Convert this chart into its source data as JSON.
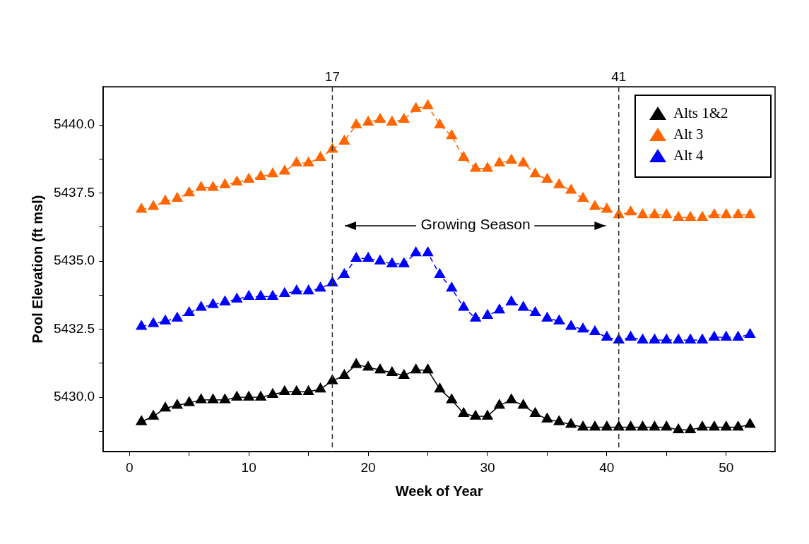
{
  "chart_data": {
    "type": "line",
    "xlabel": "Week of Year",
    "ylabel": "Pool Elevation (ft msl)",
    "x": [
      1,
      2,
      3,
      4,
      5,
      6,
      7,
      8,
      9,
      10,
      11,
      12,
      13,
      14,
      15,
      16,
      17,
      18,
      19,
      20,
      21,
      22,
      23,
      24,
      25,
      26,
      27,
      28,
      29,
      30,
      31,
      32,
      33,
      34,
      35,
      36,
      37,
      38,
      39,
      40,
      41,
      42,
      43,
      44,
      45,
      46,
      47,
      48,
      49,
      50,
      51,
      52
    ],
    "series": [
      {
        "name": "Alts 1&2",
        "color": "#000000",
        "line_style": "solid",
        "values": [
          5429.1,
          5429.3,
          5429.6,
          5429.7,
          5429.8,
          5429.9,
          5429.9,
          5429.9,
          5430.0,
          5430.0,
          5430.0,
          5430.1,
          5430.2,
          5430.2,
          5430.2,
          5430.3,
          5430.6,
          5430.8,
          5431.2,
          5431.1,
          5431.0,
          5430.9,
          5430.8,
          5431.0,
          5431.0,
          5430.3,
          5429.9,
          5429.4,
          5429.3,
          5429.3,
          5429.7,
          5429.9,
          5429.7,
          5429.4,
          5429.2,
          5429.1,
          5429.0,
          5428.9,
          5428.9,
          5428.9,
          5428.9,
          5428.9,
          5428.9,
          5428.9,
          5428.9,
          5428.8,
          5428.8,
          5428.9,
          5428.9,
          5428.9,
          5428.9,
          5429.0
        ]
      },
      {
        "name": "Alt 3",
        "color": "#ff6600",
        "line_style": "dashed",
        "values": [
          5436.9,
          5437.0,
          5437.2,
          5437.3,
          5437.5,
          5437.7,
          5437.7,
          5437.8,
          5437.9,
          5438.0,
          5438.1,
          5438.2,
          5438.3,
          5438.6,
          5438.6,
          5438.8,
          5439.1,
          5439.4,
          5440.0,
          5440.1,
          5440.2,
          5440.1,
          5440.2,
          5440.6,
          5440.7,
          5440.0,
          5439.6,
          5438.8,
          5438.4,
          5438.4,
          5438.6,
          5438.7,
          5438.6,
          5438.2,
          5438.0,
          5437.8,
          5437.6,
          5437.3,
          5437.0,
          5436.9,
          5436.7,
          5436.8,
          5436.7,
          5436.7,
          5436.7,
          5436.6,
          5436.6,
          5436.6,
          5436.7,
          5436.7,
          5436.7,
          5436.7
        ]
      },
      {
        "name": "Alt 4",
        "color": "#0000ff",
        "line_style": "dashed",
        "values": [
          5432.6,
          5432.7,
          5432.8,
          5432.9,
          5433.1,
          5433.3,
          5433.4,
          5433.5,
          5433.6,
          5433.7,
          5433.7,
          5433.7,
          5433.8,
          5433.9,
          5433.9,
          5434.0,
          5434.2,
          5434.5,
          5435.1,
          5435.1,
          5435.0,
          5434.9,
          5434.9,
          5435.3,
          5435.3,
          5434.5,
          5434.0,
          5433.3,
          5432.9,
          5433.0,
          5433.2,
          5433.5,
          5433.3,
          5433.1,
          5432.9,
          5432.8,
          5432.6,
          5432.5,
          5432.4,
          5432.2,
          5432.1,
          5432.2,
          5432.1,
          5432.1,
          5432.1,
          5432.1,
          5432.1,
          5432.1,
          5432.2,
          5432.2,
          5432.2,
          5432.3
        ]
      }
    ],
    "xlim": [
      -2.2,
      54.1
    ],
    "xticks": [
      0,
      {
        "value": 5,
        "label": null
      },
      10,
      {
        "value": 15,
        "label": null
      },
      20,
      {
        "value": 25,
        "label": null
      },
      30,
      {
        "value": 35,
        "label": null
      },
      40,
      {
        "value": 45,
        "label": null
      },
      50
    ],
    "ylim": [
      5428.0,
      5441.4
    ],
    "yticks": [
      {
        "value": 5428.75,
        "label": null
      },
      {
        "value": 5430,
        "label": "5430.0"
      },
      {
        "value": 5431.25,
        "label": null
      },
      {
        "value": 5432.5,
        "label": "5432.5"
      },
      {
        "value": 5433.75,
        "label": null
      },
      {
        "value": 5435,
        "label": "5435.0"
      },
      {
        "value": 5436.25,
        "label": null
      },
      {
        "value": 5437.5,
        "label": "5437.5"
      },
      {
        "value": 5438.75,
        "label": null
      },
      {
        "value": 5440,
        "label": "5440.0"
      }
    ],
    "ref_lines": [
      {
        "axis": "x",
        "value": 17,
        "label": "17",
        "color": "#333333",
        "line_style": "dashed"
      },
      {
        "axis": "x",
        "value": 41,
        "label": "41",
        "color": "#333333",
        "line_style": "dashed"
      }
    ],
    "annotations": [
      "Growing Season"
    ],
    "grid": false,
    "legend": "top right",
    "marker": "triangle"
  }
}
